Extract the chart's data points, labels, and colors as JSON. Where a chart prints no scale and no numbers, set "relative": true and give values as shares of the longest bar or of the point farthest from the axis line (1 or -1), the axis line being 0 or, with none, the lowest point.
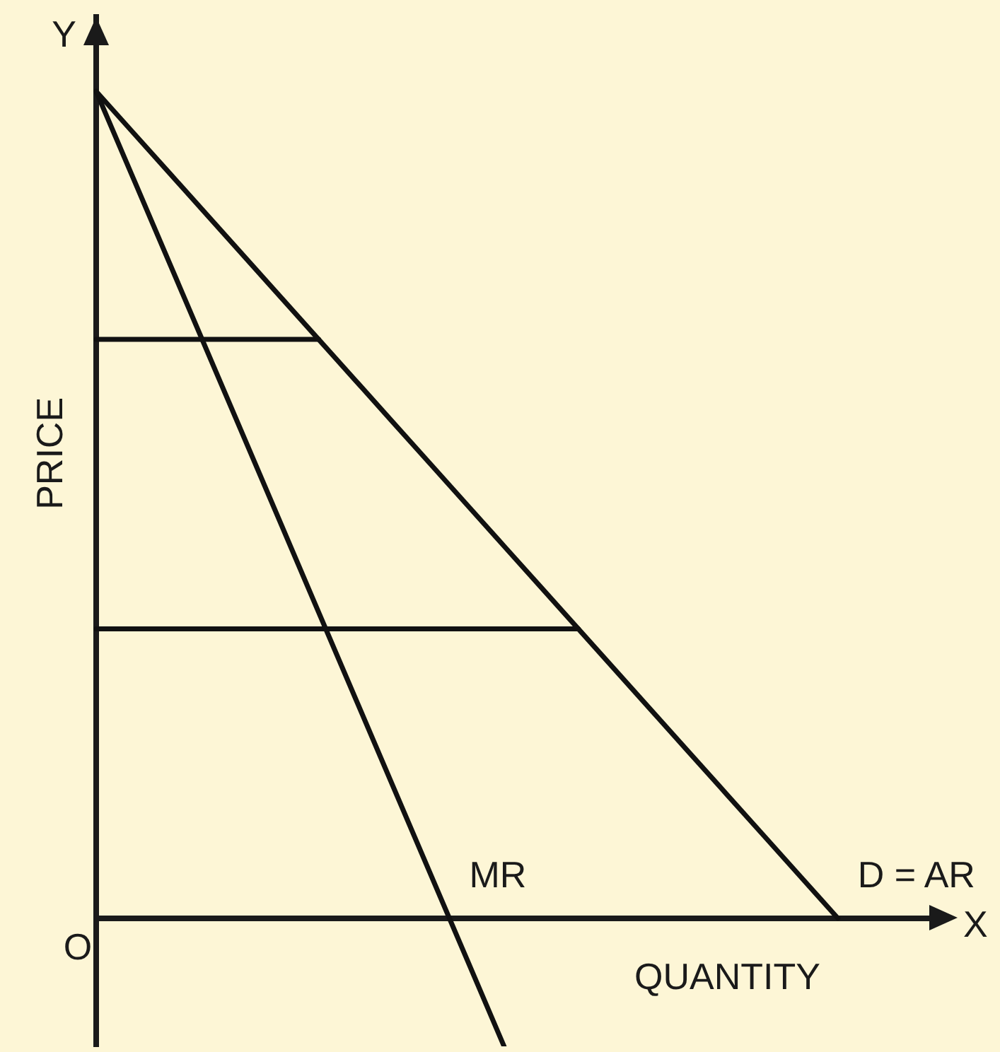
{
  "chart_data": {
    "type": "line",
    "relative": true,
    "xlabel": "QUANTITY",
    "ylabel": "PRICE",
    "annotations": [
      "Y",
      "X",
      "O"
    ],
    "categories": [
      null,
      null,
      null,
      null,
      null,
      null,
      null,
      null,
      null,
      null,
      null,
      null,
      null,
      null,
      null,
      null,
      null,
      null,
      null,
      null,
      null,
      null,
      null,
      null
    ],
    "series": [
      {
        "name": "D = AR",
        "color": "#111111",
        "values": [
          1,
          0.95,
          0.9,
          0.85,
          0.8,
          0.75,
          0.7,
          0.65,
          0.6,
          0.55,
          0.5,
          0.45,
          0.4,
          0.35,
          0.3,
          0.25,
          0.2,
          0.15,
          0.1,
          0.05,
          0,
          null,
          null,
          null
        ]
      },
      {
        "name": "MR",
        "color": "#111111",
        "values": [
          1,
          0.895,
          0.79,
          0.685,
          0.58,
          0.475,
          0.37,
          0.265,
          0.16,
          0.055,
          -0.05,
          -0.155,
          null,
          null,
          null,
          null,
          null,
          null,
          null,
          null,
          null,
          null,
          null,
          null
        ]
      },
      {
        "color": "#111111",
        "values": [
          0.7,
          0.7,
          0.7,
          0.7,
          0.7,
          0.7,
          0.7,
          null,
          null,
          null,
          null,
          null,
          null,
          null,
          null,
          null,
          null,
          null,
          null,
          null,
          null,
          null,
          null,
          null
        ]
      },
      {
        "color": "#111111",
        "values": [
          0.35,
          0.35,
          0.35,
          0.35,
          0.35,
          0.35,
          0.35,
          0.35,
          0.35,
          0.35,
          0.35,
          0.35,
          0.35,
          0.35,
          null,
          null,
          null,
          null,
          null,
          null,
          null,
          null,
          null,
          null
        ]
      }
    ]
  }
}
